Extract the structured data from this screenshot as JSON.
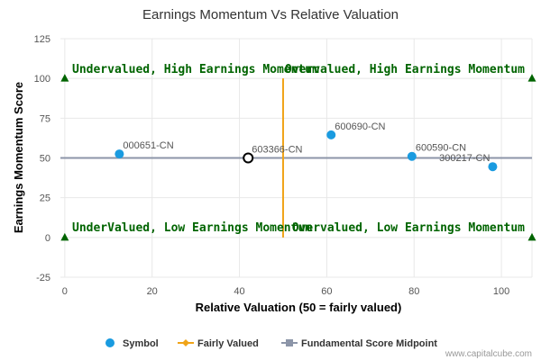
{
  "chart_data": {
    "type": "scatter",
    "title": "Earnings Momentum Vs Relative Valuation",
    "xlabel": "Relative Valuation (50 = fairly valued)",
    "ylabel": "Earnings Momentum Score",
    "xlim": [
      -1,
      107
    ],
    "ylim": [
      -25,
      125
    ],
    "xticks": [
      0,
      20,
      40,
      60,
      80,
      100
    ],
    "yticks": [
      -25,
      0,
      25,
      50,
      75,
      100,
      125
    ],
    "grid": true,
    "legend_position": "bottom",
    "points": [
      {
        "label": "000651-CN",
        "x": 12.5,
        "y": 52.5
      },
      {
        "label": "603366-CN",
        "x": 42,
        "y": 50,
        "highlight": true
      },
      {
        "label": "600690-CN",
        "x": 61,
        "y": 64.5
      },
      {
        "label": "600590-CN",
        "x": 79.5,
        "y": 51
      },
      {
        "label": "300217-CN",
        "x": 98,
        "y": 44.5
      }
    ],
    "fairly_valued_x": 50,
    "midpoint_y": 50,
    "quadrant_labels": {
      "top_left": "Undervalued, High Earnings Momentum",
      "top_right": "Overvalued, High Earnings Momentum",
      "bottom_left": "UnderValued, Low Earnings Momentum",
      "bottom_right": "Overvalued, Low Earnings Momentum"
    },
    "corner_markers": [
      {
        "x": 0,
        "y": 100
      },
      {
        "x": 107,
        "y": 100
      },
      {
        "x": 0,
        "y": 0
      },
      {
        "x": 107,
        "y": 0
      }
    ],
    "legend": [
      "Symbol",
      "Fairly Valued",
      "Fundamental Score Midpoint"
    ],
    "colors": {
      "symbol": "#1a9be0",
      "fairly_valued": "#f0a418",
      "midpoint": "#8c95a8",
      "quadrant_text": "#006400",
      "grid": "#e8e8e8"
    }
  },
  "credit": "www.capitalcube.com"
}
